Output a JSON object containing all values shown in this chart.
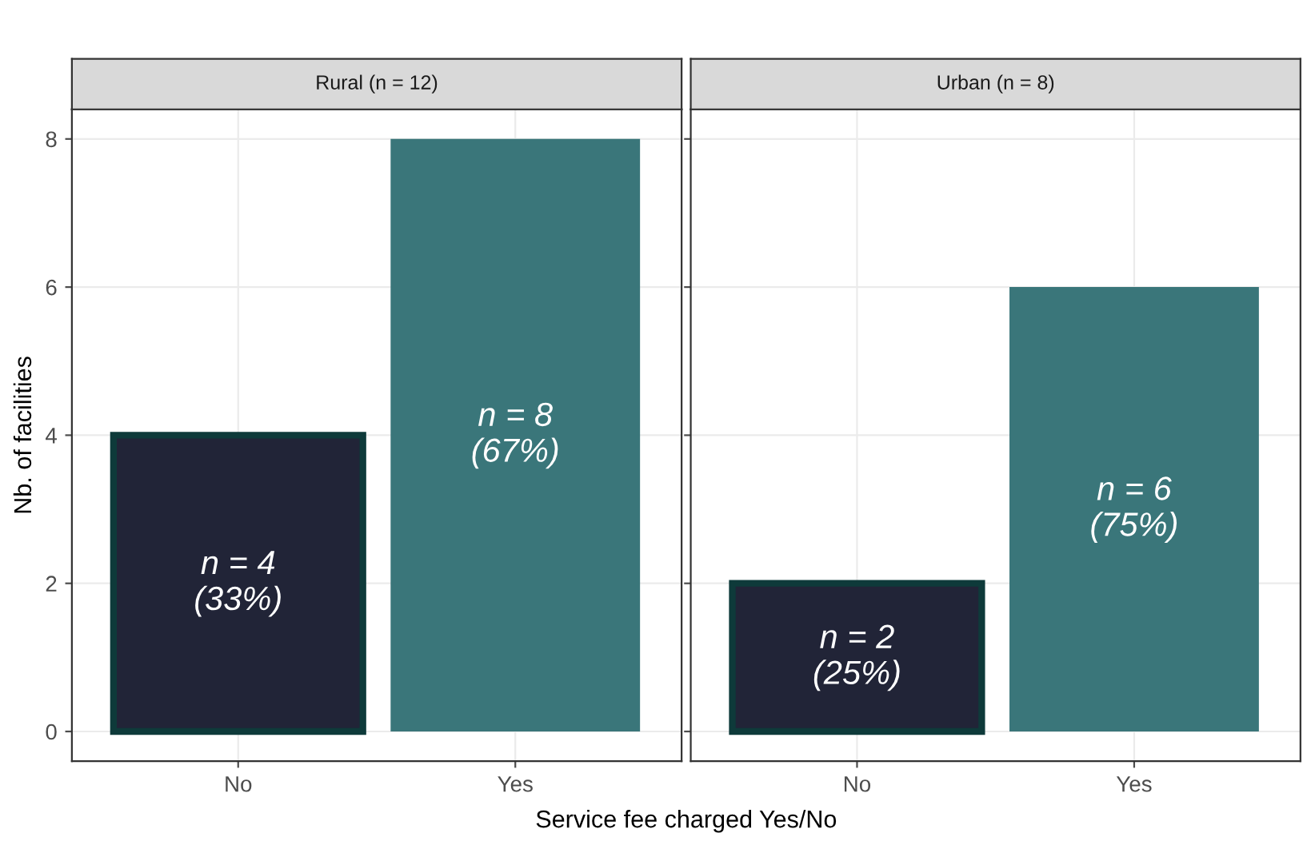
{
  "chart_data": [
    {
      "type": "bar",
      "title": "Rural (n = 12)",
      "xlabel": "Service fee charged Yes/No",
      "ylabel": "Nb. of facilities",
      "categories": [
        "No",
        "Yes"
      ],
      "values": [
        4,
        8
      ],
      "colors": [
        "#212437",
        "#3a767a"
      ],
      "value_labels": [
        "n = 4\n(33%)",
        "n = 8\n(67%)"
      ],
      "ylim": [
        -0.4,
        8.4
      ],
      "yticks": [
        0,
        2,
        4,
        6,
        8
      ],
      "grid": true
    },
    {
      "type": "bar",
      "title": "Urban (n = 8)",
      "categories": [
        "No",
        "Yes"
      ],
      "values": [
        2,
        6
      ],
      "colors": [
        "#212437",
        "#3a767a"
      ],
      "value_labels": [
        "n = 2\n(25%)",
        "n = 6\n(75%)"
      ],
      "ylim": [
        -0.4,
        8.4
      ],
      "yticks": [
        0,
        2,
        4,
        6,
        8
      ],
      "grid": true,
      "tick_labels": "x"
    }
  ]
}
